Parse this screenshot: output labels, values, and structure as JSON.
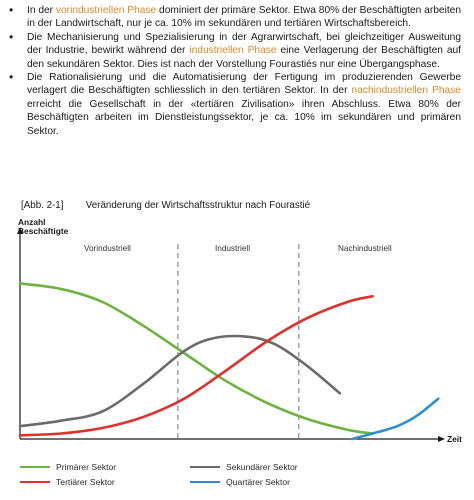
{
  "bullets": [
    {
      "parts": [
        {
          "text": "In der ",
          "hl": false
        },
        {
          "text": "vorindustriellen Phase",
          "hl": true
        },
        {
          "text": " dominiert der primäre Sektor. Etwa 80% der Beschäftigten arbeiten in der Landwirtschaft, nur je ca. 10% im sekundären und tertiären Wirtschaftsbereich.",
          "hl": false
        }
      ]
    },
    {
      "parts": [
        {
          "text": "Die Mechanisierung und Spezialisierung in der Agrarwirtschaft, bei gleichzeitiger Ausweitung der Industrie, bewirkt während der ",
          "hl": false
        },
        {
          "text": "industriellen Phase",
          "hl": true
        },
        {
          "text": " eine Verlagerung der Beschäftigten auf den sekundären Sektor. Dies ist nach der Vorstellung Fourastiés nur eine Übergangsphase.",
          "hl": false
        }
      ]
    },
    {
      "parts": [
        {
          "text": "Die Rationalisierung und die Automatisierung der Fertigung im produzierenden Gewerbe verlagert die Beschäftigten schliesslich in den tertiären Sektor. In der ",
          "hl": false
        },
        {
          "text": "nachindustriellen Phase",
          "hl": true
        },
        {
          "text": " erreicht die Gesellschaft in der «tertiären Zivilisation» ihren Abschluss. Etwa 80% der Beschäftigten arbeiten im Dienstleistungssektor, je ca. 10% im sekundären und primären Sektor.",
          "hl": false
        }
      ]
    }
  ],
  "figure": {
    "number": "[Abb. 2-1]",
    "title": "Veränderung der Wirtschaftsstruktur nach Fourastié"
  },
  "chart_data": {
    "type": "line",
    "ylabel": "Anzahl\nBeschäftigte",
    "xlabel": "Zeit",
    "phases": [
      "Vorindustriell",
      "Industriell",
      "Nachindustriell"
    ],
    "xlim": [
      0,
      100
    ],
    "ylim": [
      0,
      100
    ],
    "series": [
      {
        "name": "Primärer Sektor",
        "color": "#6db33f",
        "x": [
          0,
          10,
          20,
          30,
          40,
          50,
          60,
          70,
          80,
          86
        ],
        "y": [
          85,
          82,
          75,
          62,
          47,
          32,
          20,
          11,
          5,
          3
        ]
      },
      {
        "name": "Sekundärer Sektor",
        "color": "#6b6b6b",
        "x": [
          0,
          10,
          20,
          30,
          40,
          47,
          55,
          62,
          70,
          78
        ],
        "y": [
          7,
          10,
          15,
          30,
          48,
          55,
          56,
          52,
          40,
          25
        ]
      },
      {
        "name": "Tertiärer Sektor",
        "color": "#e0302c",
        "x": [
          0,
          10,
          20,
          30,
          40,
          50,
          60,
          70,
          80,
          86
        ],
        "y": [
          2,
          3,
          6,
          12,
          22,
          37,
          53,
          66,
          75,
          78
        ]
      },
      {
        "name": "Quartärer Sektor",
        "color": "#2e8fd0",
        "x": [
          81,
          86,
          92,
          97,
          102
        ],
        "y": [
          0,
          3,
          7,
          13,
          22
        ]
      }
    ]
  }
}
